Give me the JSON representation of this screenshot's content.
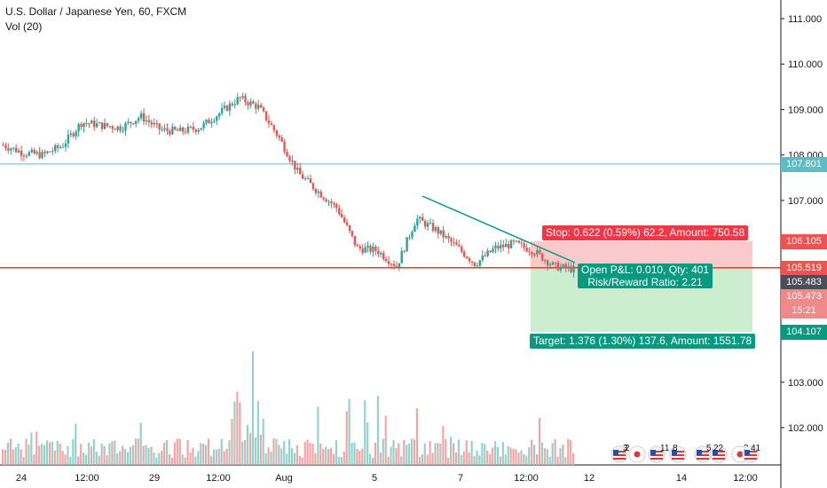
{
  "legend": {
    "title": "U.S. Dollar / Japanese Yen, 60, FXCM",
    "volume": "Vol (20)"
  },
  "price_axis": {
    "ticks": [
      "111.000",
      "110.000",
      "109.000",
      "108.000",
      "107.000",
      "103.000",
      "102.000"
    ]
  },
  "time_axis": {
    "labels": [
      "24",
      "12:00",
      "29",
      "12:00",
      "Aug",
      "5",
      "7",
      "12:00",
      "12",
      "14",
      "12:00"
    ]
  },
  "price_labels": [
    {
      "text": "107.801",
      "color": "#5fbcc4"
    },
    {
      "text": "106.105",
      "color": "#ef5350"
    },
    {
      "text": "105.519",
      "color": "#ef5350"
    },
    {
      "text": "105.483",
      "color": "#4a4e59"
    },
    {
      "text": "105.473",
      "color": "#f08a8a"
    },
    {
      "text": "15:21",
      "color": "#f08a8a"
    },
    {
      "text": "104.107",
      "color": "#089981"
    }
  ],
  "position": {
    "stop_label": "Stop: 0.622 (0.59%) 62.2, Amount: 750.58",
    "pnl_label": "Open P&L: 0.010, Qty: 401",
    "rr_label": "Risk/Reward Ratio: 2.21",
    "target_label": "Target: 1.376 (1.30%) 137.6, Amount: 1551.78",
    "stop_color": "#f23645",
    "target_color": "#089981"
  },
  "events": [
    {
      "icon": "us-flag-icon",
      "count": "3"
    },
    {
      "icon": "jp-flag-icon",
      "count": "2"
    },
    {
      "icon": "us-flag-icon",
      "count": "11"
    },
    {
      "icon": "us-flag-icon",
      "count": "8"
    },
    {
      "icon": "us-flag-icon",
      "count": "5"
    },
    {
      "icon": "us-flag-icon",
      "count": "22"
    },
    {
      "icon": "jp-flag-icon",
      "count": "2"
    },
    {
      "icon": "us-flag-icon",
      "count": "41"
    }
  ],
  "chart_data": {
    "type": "candlestick",
    "title": "U.S. Dollar / Japanese Yen, 60, FXCM",
    "ylim": [
      101.4,
      111.3
    ],
    "series": [
      {
        "name": "USDJPY",
        "points": [
          [
            "24 00:00",
            108.22
          ],
          [
            "24 12:00",
            108.05
          ],
          [
            "25",
            108.0
          ],
          [
            "26 00:00",
            108.2
          ],
          [
            "26 06:00",
            108.72
          ],
          [
            "26 12:00",
            108.65
          ],
          [
            "29 00:00",
            108.6
          ],
          [
            "29 06:00",
            108.85
          ],
          [
            "29 12:00",
            108.55
          ],
          [
            "30 00:00",
            108.52
          ],
          [
            "30 12:00",
            108.6
          ],
          [
            "31 00:00",
            108.92
          ],
          [
            "31 06:00",
            109.25
          ],
          [
            "31 12:00",
            109.05
          ],
          [
            "1 06:00",
            108.4
          ],
          [
            "1 12:00",
            107.6
          ],
          [
            "2 00:00",
            107.2
          ],
          [
            "2 12:00",
            106.82
          ],
          [
            "5 00:00",
            105.95
          ],
          [
            "5 12:00",
            105.9
          ],
          [
            "5 18:00",
            105.55
          ],
          [
            "6 00:00",
            106.6
          ],
          [
            "6 12:00",
            106.35
          ],
          [
            "7 00:00",
            106.0
          ],
          [
            "7 06:00",
            105.6
          ],
          [
            "7 12:00",
            105.95
          ],
          [
            "8 00:00",
            106.05
          ],
          [
            "8 12:00",
            105.88
          ],
          [
            "8 18:00",
            105.55
          ],
          [
            "9 00:00",
            105.483
          ]
        ]
      }
    ],
    "volume_note": "Vol (20) histogram",
    "position": {
      "entry": 105.483,
      "stop": 106.105,
      "target": 104.107
    },
    "horizontal_lines": [
      107.801,
      105.519
    ]
  }
}
